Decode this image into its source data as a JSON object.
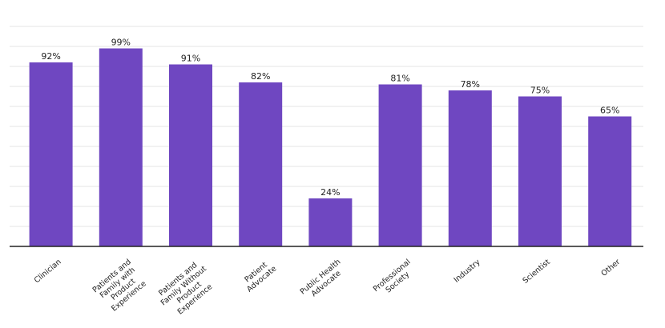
{
  "chart_data": {
    "type": "bar",
    "title": "",
    "xlabel": "",
    "ylabel": "",
    "categories": [
      [
        "Clinician"
      ],
      [
        "Patients and",
        "Family with",
        "Product",
        "Experience"
      ],
      [
        "Patients and",
        "Family Without",
        "Product",
        "Experience"
      ],
      [
        "Patient",
        "Advocate"
      ],
      [
        "Public Health",
        "Advocate"
      ],
      [
        "Professional",
        "Society"
      ],
      [
        "Industry"
      ],
      [
        "Scientist"
      ],
      [
        "Other"
      ]
    ],
    "values": [
      92,
      99,
      91,
      82,
      24,
      81,
      78,
      75,
      65
    ],
    "value_labels": [
      "92%",
      "99%",
      "91%",
      "82%",
      "24%",
      "81%",
      "78%",
      "75%",
      "65%"
    ],
    "ylim": [
      0,
      110
    ],
    "grid": true,
    "bar_color": "#6f47c1",
    "grid_color": "#e6e6e6",
    "axis_color": "#222222"
  }
}
